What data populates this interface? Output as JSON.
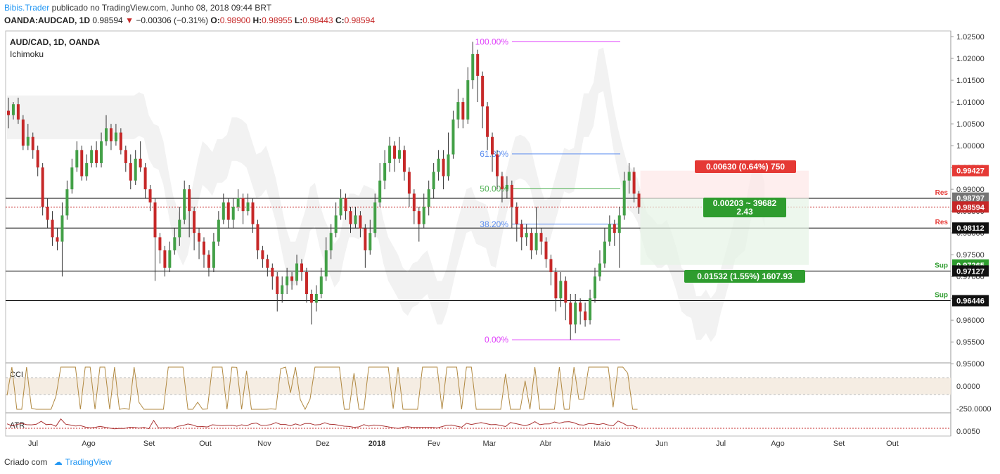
{
  "header": {
    "author": "Bibis.Trader",
    "published": " publicado no TradingView.com, Junho 08, 2018 09:44 BRT",
    "symbol": "OANDA:AUDCAD, 1D",
    "last": "0.98594",
    "change": "−0.00306 (−0.31%)",
    "o_label": "O:",
    "o": "0.98900",
    "h_label": "H:",
    "h": "0.98955",
    "l_label": "L:",
    "l": "0.98443",
    "c_label": "C:",
    "c": "0.98594"
  },
  "pane_title": "AUD/CAD, 1D, OANDA",
  "indicator_name": "Ichimoku",
  "footer": {
    "created": "Criado com",
    "brand": "TradingView"
  },
  "colors": {
    "up": "#43a047",
    "down": "#c62828",
    "fib_top": "#e040fb",
    "fib_618": "#5b8def",
    "fib_50": "#4caf50",
    "cci": "#b08840",
    "atr": "#a33",
    "cloud": "#e8e8e8"
  },
  "chart_data": {
    "type": "candlestick",
    "price_axis": [
      "1.02500",
      "1.02000",
      "1.01500",
      "1.01000",
      "1.00500",
      "1.00000",
      "0.99500",
      "0.99000",
      "0.98500",
      "0.98000",
      "0.97500",
      "0.97000",
      "0.96500",
      "0.96000",
      "0.95500",
      "0.95000"
    ],
    "ylim": [
      0.9502,
      1.0263
    ],
    "x_ticks": [
      "Jul",
      "Ago",
      "Set",
      "Out",
      "Nov",
      "Dez",
      "2018",
      "Fev",
      "Mar",
      "Abr",
      "Maio",
      "Jun",
      "Jul",
      "Ago",
      "Set",
      "Out"
    ],
    "price_labels": [
      {
        "value": "0.99427",
        "color": "#e53935"
      },
      {
        "value": "0.98793",
        "color": "#111111"
      },
      {
        "value": "0.98797",
        "color": "#757575"
      },
      {
        "value": "0.98594",
        "color": "#c62828"
      },
      {
        "value": "0.98112",
        "color": "#111111"
      },
      {
        "value": "0.97265",
        "color": "#2e9c2e"
      },
      {
        "value": "0.97127",
        "color": "#111111"
      },
      {
        "value": "0.96446",
        "color": "#111111"
      }
    ],
    "levels": [
      {
        "label": "Res",
        "price": 0.98793,
        "color": "#e53935"
      },
      {
        "label": "Res",
        "price": 0.98112,
        "color": "#e53935"
      },
      {
        "label": "Sup",
        "price": 0.97127,
        "color": "#2e9c2e"
      },
      {
        "label": "Sup",
        "price": 0.96446,
        "color": "#2e9c2e"
      }
    ],
    "fib": [
      {
        "label": "100.00%",
        "price": 1.0238,
        "color": "#e040fb"
      },
      {
        "label": "61.80%",
        "price": 0.9981,
        "color": "#5b8def"
      },
      {
        "label": "50.00%",
        "price": 0.99012,
        "color": "#4caf50"
      },
      {
        "label": "38.20%",
        "price": 0.982,
        "color": "#5b8def"
      },
      {
        "label": "0.00%",
        "price": 0.9555,
        "color": "#e040fb"
      }
    ],
    "trade_boxes": {
      "target": "0.00630 (0.64%) 750",
      "entry": "0.00203 ~ 39682",
      "ratio": "2.43",
      "stop": "0.01532 (1.55%) 1607.93"
    },
    "candles": [
      [
        1.008,
        1.007,
        1.011,
        1.004
      ],
      [
        1.007,
        1.0095,
        1.01,
        1.006
      ],
      [
        1.0095,
        1.006,
        1.011,
        1.005
      ],
      [
        1.006,
        1.0,
        1.007,
        0.999
      ],
      [
        1.0,
        1.002,
        1.005,
        0.999
      ],
      [
        1.002,
        0.999,
        1.003,
        0.997
      ],
      [
        0.999,
        0.995,
        1.0,
        0.993
      ],
      [
        0.995,
        0.986,
        0.996,
        0.984
      ],
      [
        0.986,
        0.983,
        0.988,
        0.981
      ],
      [
        0.983,
        0.979,
        0.985,
        0.977
      ],
      [
        0.979,
        0.978,
        0.981,
        0.976
      ],
      [
        0.978,
        0.984,
        0.987,
        0.97
      ],
      [
        0.984,
        0.99,
        0.992,
        0.983
      ],
      [
        0.99,
        0.995,
        0.997,
        0.989
      ],
      [
        0.995,
        0.999,
        1.001,
        0.994
      ],
      [
        0.999,
        0.993,
        1.0,
        0.992
      ],
      [
        0.993,
        0.996,
        0.998,
        0.992
      ],
      [
        0.996,
        0.999,
        1.0,
        0.995
      ],
      [
        0.999,
        0.996,
        1.001,
        0.995
      ],
      [
        0.996,
        1.001,
        1.003,
        0.995
      ],
      [
        1.001,
        1.004,
        1.007,
        1.0
      ],
      [
        1.004,
        1.001,
        1.005,
        0.999
      ],
      [
        1.001,
        1.003,
        1.005,
        1.0
      ],
      [
        1.003,
        0.999,
        1.004,
        0.998
      ],
      [
        0.999,
        0.996,
        1.0,
        0.994
      ],
      [
        0.996,
        0.992,
        0.998,
        0.99
      ],
      [
        0.992,
        0.997,
        0.999,
        0.991
      ],
      [
        0.997,
        0.995,
        1.001,
        0.994
      ],
      [
        0.995,
        0.99,
        0.996,
        0.988
      ],
      [
        0.99,
        0.987,
        0.991,
        0.985
      ],
      [
        0.987,
        0.979,
        0.988,
        0.969
      ],
      [
        0.979,
        0.976,
        0.98,
        0.973
      ],
      [
        0.976,
        0.972,
        0.977,
        0.97
      ],
      [
        0.972,
        0.976,
        0.978,
        0.971
      ],
      [
        0.976,
        0.979,
        0.981,
        0.975
      ],
      [
        0.979,
        0.983,
        0.986,
        0.977
      ],
      [
        0.983,
        0.99,
        0.992,
        0.982
      ],
      [
        0.99,
        0.985,
        0.991,
        0.979
      ],
      [
        0.985,
        0.98,
        0.986,
        0.976
      ],
      [
        0.98,
        0.978,
        0.981,
        0.974
      ],
      [
        0.978,
        0.975,
        0.979,
        0.972
      ],
      [
        0.975,
        0.972,
        0.976,
        0.97
      ],
      [
        0.972,
        0.978,
        0.98,
        0.971
      ],
      [
        0.978,
        0.983,
        0.985,
        0.977
      ],
      [
        0.983,
        0.987,
        0.989,
        0.982
      ],
      [
        0.987,
        0.983,
        0.988,
        0.981
      ],
      [
        0.983,
        0.986,
        0.988,
        0.981
      ],
      [
        0.986,
        0.988,
        0.99,
        0.985
      ],
      [
        0.988,
        0.985,
        0.989,
        0.982
      ],
      [
        0.985,
        0.987,
        0.989,
        0.984
      ],
      [
        0.987,
        0.982,
        0.988,
        0.98
      ],
      [
        0.982,
        0.976,
        0.983,
        0.974
      ],
      [
        0.976,
        0.974,
        0.977,
        0.972
      ],
      [
        0.974,
        0.972,
        0.975,
        0.97
      ],
      [
        0.972,
        0.97,
        0.973,
        0.967
      ],
      [
        0.97,
        0.966,
        0.971,
        0.962
      ],
      [
        0.966,
        0.968,
        0.97,
        0.964
      ],
      [
        0.968,
        0.97,
        0.972,
        0.966
      ],
      [
        0.97,
        0.969,
        0.971,
        0.967
      ],
      [
        0.969,
        0.973,
        0.975,
        0.968
      ],
      [
        0.973,
        0.971,
        0.974,
        0.969
      ],
      [
        0.971,
        0.966,
        0.972,
        0.964
      ],
      [
        0.966,
        0.964,
        0.967,
        0.959
      ],
      [
        0.964,
        0.966,
        0.968,
        0.962
      ],
      [
        0.966,
        0.97,
        0.972,
        0.965
      ],
      [
        0.97,
        0.976,
        0.979,
        0.969
      ],
      [
        0.976,
        0.98,
        0.982,
        0.974
      ],
      [
        0.98,
        0.984,
        0.987,
        0.979
      ],
      [
        0.984,
        0.988,
        0.99,
        0.983
      ],
      [
        0.988,
        0.985,
        0.989,
        0.983
      ],
      [
        0.985,
        0.982,
        0.986,
        0.98
      ],
      [
        0.982,
        0.984,
        0.986,
        0.981
      ],
      [
        0.984,
        0.981,
        0.985,
        0.979
      ],
      [
        0.981,
        0.976,
        0.982,
        0.972
      ],
      [
        0.976,
        0.98,
        0.983,
        0.975
      ],
      [
        0.98,
        0.987,
        0.989,
        0.979
      ],
      [
        0.987,
        0.992,
        0.996,
        0.986
      ],
      [
        0.992,
        0.996,
        0.999,
        0.99
      ],
      [
        0.996,
        1.0,
        1.002,
        0.994
      ],
      [
        1.0,
        0.997,
        1.001,
        0.994
      ],
      [
        0.997,
        0.999,
        1.002,
        0.996
      ],
      [
        0.999,
        0.994,
        1.0,
        0.992
      ],
      [
        0.994,
        0.989,
        0.995,
        0.986
      ],
      [
        0.989,
        0.985,
        0.99,
        0.982
      ],
      [
        0.985,
        0.982,
        0.986,
        0.978
      ],
      [
        0.982,
        0.986,
        0.989,
        0.981
      ],
      [
        0.986,
        0.99,
        0.992,
        0.984
      ],
      [
        0.99,
        0.994,
        0.996,
        0.988
      ],
      [
        0.994,
        0.997,
        0.999,
        0.992
      ],
      [
        0.997,
        0.993,
        0.999,
        0.99
      ],
      [
        0.993,
        0.998,
        1.003,
        0.992
      ],
      [
        0.998,
        1.006,
        1.008,
        0.997
      ],
      [
        1.006,
        1.01,
        1.013,
        1.004
      ],
      [
        1.01,
        1.006,
        1.011,
        1.004
      ],
      [
        1.006,
        1.015,
        1.018,
        1.005
      ],
      [
        1.015,
        1.021,
        1.0238,
        1.013
      ],
      [
        1.021,
        1.016,
        1.022,
        1.01
      ],
      [
        1.016,
        1.009,
        1.017,
        1.004
      ],
      [
        1.009,
        1.002,
        1.01,
        0.999
      ],
      [
        1.002,
        0.998,
        1.003,
        0.994
      ],
      [
        0.998,
        0.993,
        0.999,
        0.99
      ],
      [
        0.993,
        0.99,
        0.994,
        0.987
      ],
      [
        0.99,
        0.991,
        0.993,
        0.988
      ],
      [
        0.991,
        0.986,
        0.992,
        0.981
      ],
      [
        0.986,
        0.982,
        0.987,
        0.978
      ],
      [
        0.982,
        0.979,
        0.983,
        0.976
      ],
      [
        0.979,
        0.98,
        0.982,
        0.977
      ],
      [
        0.98,
        0.976,
        0.981,
        0.974
      ],
      [
        0.976,
        0.98,
        0.986,
        0.975
      ],
      [
        0.98,
        0.978,
        0.981,
        0.975
      ],
      [
        0.978,
        0.974,
        0.979,
        0.972
      ],
      [
        0.974,
        0.971,
        0.975,
        0.968
      ],
      [
        0.971,
        0.965,
        0.972,
        0.962
      ],
      [
        0.965,
        0.969,
        0.971,
        0.963
      ],
      [
        0.969,
        0.964,
        0.97,
        0.96
      ],
      [
        0.964,
        0.959,
        0.966,
        0.9555
      ],
      [
        0.959,
        0.964,
        0.966,
        0.957
      ],
      [
        0.964,
        0.962,
        0.965,
        0.959
      ],
      [
        0.962,
        0.96,
        0.964,
        0.9585
      ],
      [
        0.96,
        0.965,
        0.967,
        0.959
      ],
      [
        0.965,
        0.97,
        0.972,
        0.964
      ],
      [
        0.97,
        0.973,
        0.976,
        0.969
      ],
      [
        0.973,
        0.978,
        0.981,
        0.972
      ],
      [
        0.978,
        0.982,
        0.984,
        0.977
      ],
      [
        0.982,
        0.98,
        0.983,
        0.977
      ],
      [
        0.98,
        0.984,
        0.986,
        0.972
      ],
      [
        0.984,
        0.992,
        0.994,
        0.983
      ],
      [
        0.992,
        0.994,
        0.996,
        0.989
      ],
      [
        0.994,
        0.989,
        0.995,
        0.987
      ],
      [
        0.989,
        0.9859,
        0.9896,
        0.9844
      ]
    ],
    "cci_axis": [
      "0.0000",
      "-250.0000"
    ],
    "atr_axis": [
      "0.0050"
    ]
  }
}
